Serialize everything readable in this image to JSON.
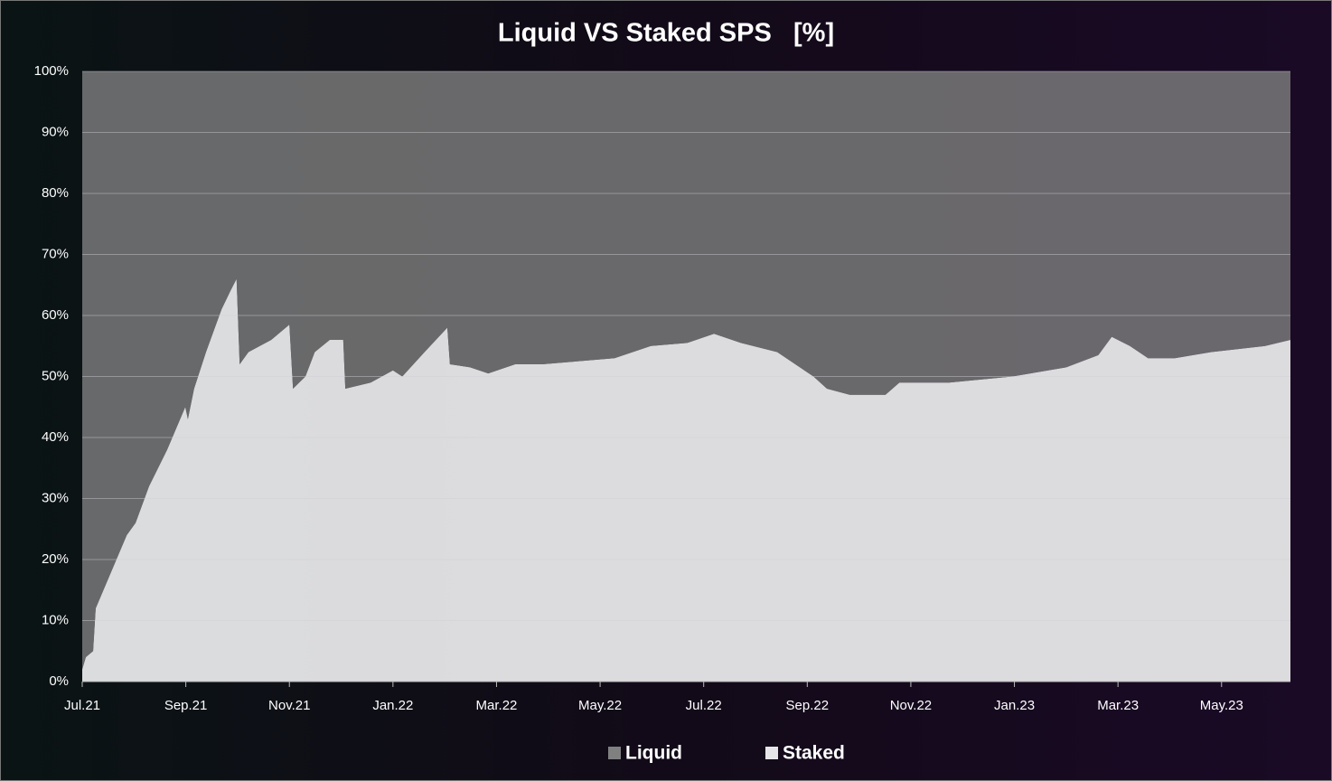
{
  "chart_data": {
    "type": "stacked_area",
    "title": "Liquid VS Staked SPS   [%]",
    "x": [
      0,
      0.07,
      0.21,
      0.26,
      0.51,
      0.86,
      1.03,
      1.29,
      1.64,
      1.99,
      2.04,
      2.16,
      2.39,
      2.69,
      2.86,
      2.98,
      3.04,
      3.21,
      3.65,
      4.0,
      4.07,
      4.31,
      4.49,
      4.78,
      5.04,
      5.08,
      5.57,
      6.0,
      6.18,
      6.61,
      7.05,
      7.1,
      7.49,
      7.84,
      8.36,
      8.88,
      9.58,
      10.28,
      10.98,
      11.68,
      12.2,
      12.72,
      13.42,
      13.77,
      14.12,
      14.38,
      14.82,
      15.51,
      15.78,
      16.74,
      17.96,
      19.0,
      19.62,
      19.88,
      20.23,
      20.58,
      21.1,
      21.8,
      22.84,
      23.33
    ],
    "series": [
      {
        "name": "Staked",
        "color": "#e6e6e8",
        "values": [
          2,
          4,
          5,
          12,
          17,
          24,
          26,
          32,
          38,
          45,
          43,
          48,
          54,
          61,
          64,
          66,
          52,
          54,
          56,
          58.5,
          48,
          50,
          54,
          56,
          56,
          48,
          49,
          51,
          50,
          54,
          58,
          52,
          51.5,
          50.5,
          52,
          52,
          52.5,
          53,
          55,
          55.5,
          57,
          55.5,
          54,
          52,
          50,
          48,
          47,
          47,
          49,
          49,
          50,
          51.5,
          53.5,
          56.5,
          55,
          53,
          53,
          54,
          55,
          56
        ]
      },
      {
        "name": "Liquid",
        "color": "#808080",
        "values": [
          98,
          96,
          95,
          88,
          83,
          76,
          74,
          68,
          62,
          55,
          57,
          52,
          46,
          39,
          36,
          34,
          48,
          46,
          44,
          41.5,
          52,
          50,
          46,
          44,
          44,
          52,
          51,
          49,
          50,
          46,
          42,
          48,
          48.5,
          49.5,
          48,
          48,
          47.5,
          47,
          45,
          44.5,
          43,
          44.5,
          46,
          48,
          50,
          52,
          53,
          53,
          51,
          51,
          50,
          48.5,
          46.5,
          43.5,
          45,
          47,
          47,
          46,
          45,
          44
        ]
      }
    ],
    "legend_order": [
      "Liquid",
      "Staked"
    ],
    "xlim": [
      0,
      23.33
    ],
    "xticks": [
      {
        "value": 0,
        "label": "Jul.21"
      },
      {
        "value": 2,
        "label": "Sep.21"
      },
      {
        "value": 4,
        "label": "Nov.21"
      },
      {
        "value": 6,
        "label": "Jan.22"
      },
      {
        "value": 8,
        "label": "Mar.22"
      },
      {
        "value": 10,
        "label": "May.22"
      },
      {
        "value": 12,
        "label": "Jul.22"
      },
      {
        "value": 14,
        "label": "Sep.22"
      },
      {
        "value": 16,
        "label": "Nov.22"
      },
      {
        "value": 18,
        "label": "Jan.23"
      },
      {
        "value": 20,
        "label": "Mar.23"
      },
      {
        "value": 22,
        "label": "May.23"
      }
    ],
    "ylim": [
      0,
      100
    ],
    "yticks": [
      {
        "value": 0,
        "label": "0%"
      },
      {
        "value": 10,
        "label": "10%"
      },
      {
        "value": 20,
        "label": "20%"
      },
      {
        "value": 30,
        "label": "30%"
      },
      {
        "value": 40,
        "label": "40%"
      },
      {
        "value": 50,
        "label": "50%"
      },
      {
        "value": 60,
        "label": "60%"
      },
      {
        "value": 70,
        "label": "70%"
      },
      {
        "value": 80,
        "label": "80%"
      },
      {
        "value": 90,
        "label": "90%"
      },
      {
        "value": 100,
        "label": "100%"
      }
    ],
    "grid": true,
    "legend": "bottom"
  }
}
